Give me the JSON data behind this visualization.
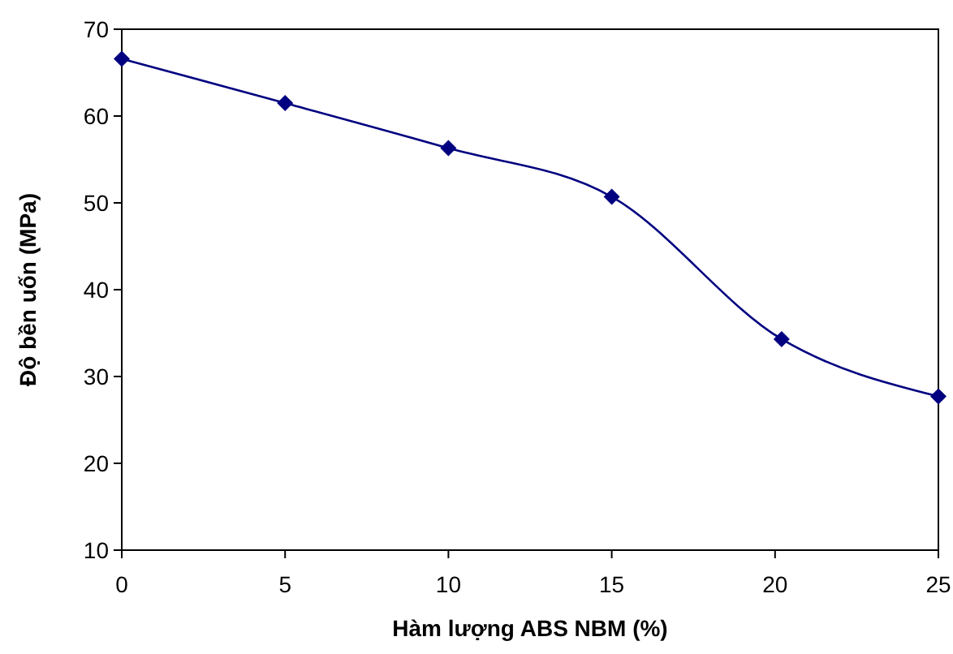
{
  "chart_data": {
    "type": "line",
    "xlabel": "Hàm lượng ABS NBM (%)",
    "ylabel": "Độ bền uốn (MPa)",
    "x": [
      0,
      5,
      10,
      15,
      20.2,
      25
    ],
    "series": [
      {
        "color": "#000080",
        "values": [
          66.6,
          61.5,
          56.3,
          50.7,
          34.3,
          27.7
        ]
      }
    ],
    "xlim": [
      0,
      25
    ],
    "xticks": [
      0,
      5,
      10,
      15,
      20,
      25
    ],
    "ylim": [
      10,
      70
    ],
    "yticks": [
      10,
      20,
      30,
      40,
      50,
      60,
      70
    ],
    "marker": "diamond",
    "line_style": "solid"
  }
}
